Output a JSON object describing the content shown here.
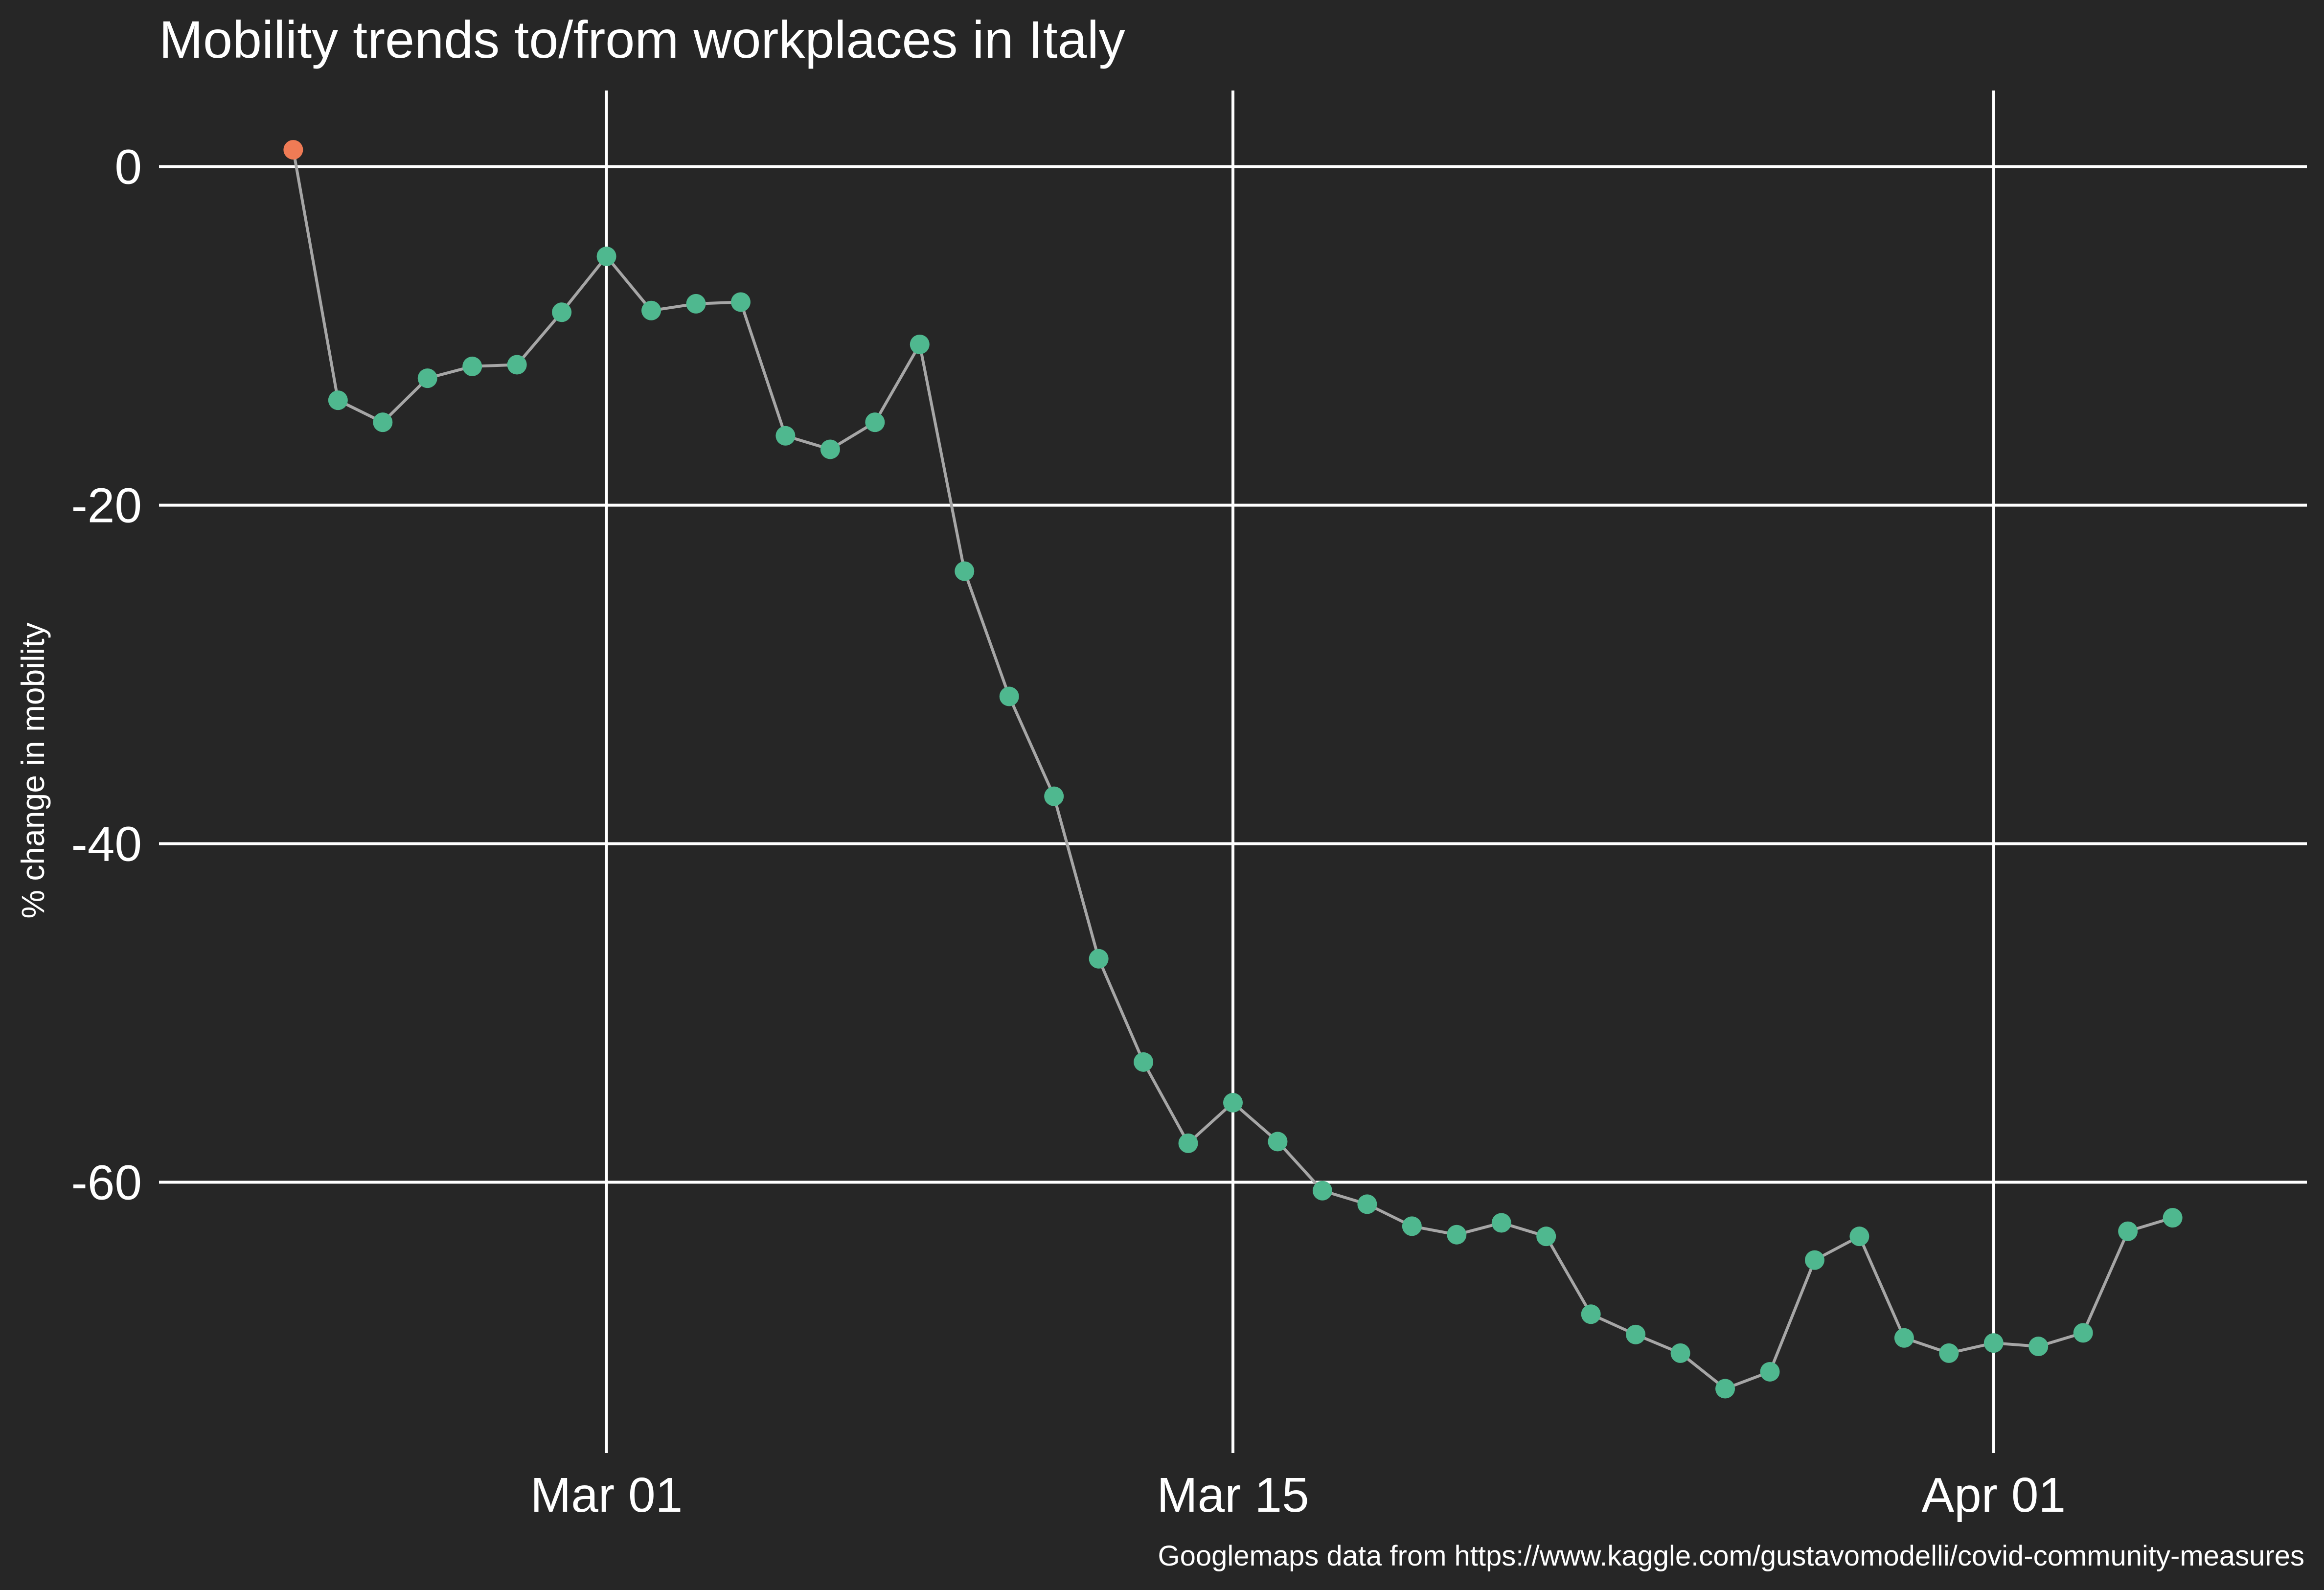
{
  "colors": {
    "background": "#262626",
    "grid": "#ffffff",
    "text": "#ffffff",
    "line": "#a6a6a6",
    "point": "#4fb88f",
    "highlight_point": "#ef7b55"
  },
  "chart_data": {
    "type": "line",
    "title": "Mobility trends to/from workplaces in Italy",
    "xlabel": "",
    "ylabel": "% change in mobility",
    "caption": "Googlemaps data from https://www.kaggle.com/gustavomodelli/covid-community-measures",
    "x_ticks": [
      {
        "date": "2020-03-01",
        "label": "Mar 01"
      },
      {
        "date": "2020-03-15",
        "label": "Mar 15"
      },
      {
        "date": "2020-04-01",
        "label": "Apr 01"
      }
    ],
    "y_ticks": [
      0,
      -20,
      -40,
      -60
    ],
    "y_tick_labels": [
      "0",
      "-20",
      "-40",
      "-60"
    ],
    "xlim": [
      "2020-02-20",
      "2020-04-08"
    ],
    "ylim": [
      -76,
      4.5
    ],
    "grid": true,
    "legend": "none",
    "highlight_first_point": true,
    "x": [
      "2020-02-23",
      "2020-02-24",
      "2020-02-25",
      "2020-02-26",
      "2020-02-27",
      "2020-02-28",
      "2020-02-29",
      "2020-03-01",
      "2020-03-02",
      "2020-03-03",
      "2020-03-04",
      "2020-03-05",
      "2020-03-06",
      "2020-03-07",
      "2020-03-08",
      "2020-03-09",
      "2020-03-10",
      "2020-03-11",
      "2020-03-12",
      "2020-03-13",
      "2020-03-14",
      "2020-03-15",
      "2020-03-16",
      "2020-03-17",
      "2020-03-18",
      "2020-03-19",
      "2020-03-20",
      "2020-03-21",
      "2020-03-22",
      "2020-03-23",
      "2020-03-24",
      "2020-03-25",
      "2020-03-26",
      "2020-03-27",
      "2020-03-28",
      "2020-03-29",
      "2020-03-30",
      "2020-03-31",
      "2020-04-01",
      "2020-04-02",
      "2020-04-03",
      "2020-04-04",
      "2020-04-05"
    ],
    "values": [
      1,
      -13.8,
      -15.1,
      -12.5,
      -11.8,
      -11.7,
      -8.6,
      -5.3,
      -8.5,
      -8.1,
      -8.0,
      -15.9,
      -16.7,
      -15.1,
      -10.5,
      -23.9,
      -31.3,
      -37.2,
      -46.8,
      -52.9,
      -57.7,
      -55.3,
      -57.6,
      -60.5,
      -61.3,
      -62.6,
      -63.1,
      -62.4,
      -63.2,
      -67.8,
      -69.0,
      -70.1,
      -72.2,
      -71.2,
      -64.6,
      -63.2,
      -69.2,
      -70.1,
      -69.5,
      -69.7,
      -68.9,
      -62.9,
      -62.1
    ]
  }
}
